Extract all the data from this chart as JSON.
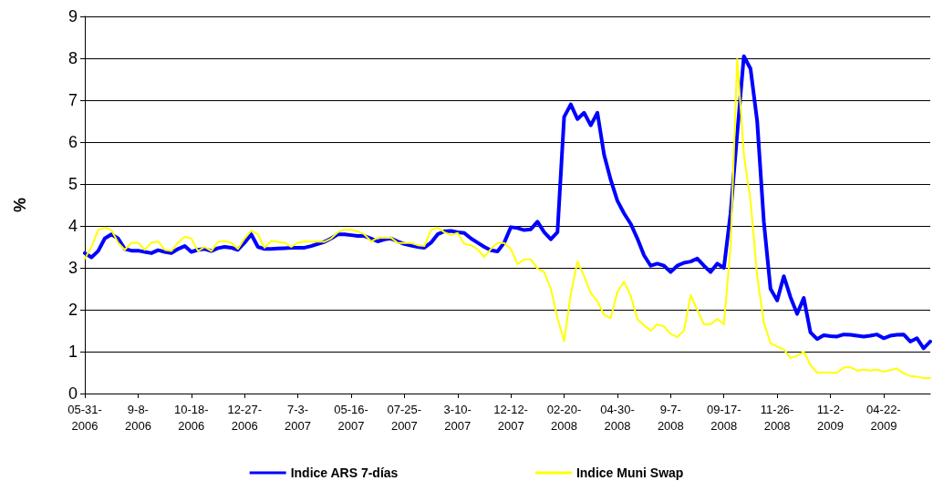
{
  "chart_data": {
    "type": "line",
    "ylabel": "%",
    "categories": [
      "05-31-2006",
      null,
      null,
      null,
      null,
      null,
      null,
      null,
      "9-8-2006",
      null,
      null,
      null,
      null,
      null,
      null,
      null,
      "10-18-2006",
      null,
      null,
      null,
      null,
      null,
      null,
      null,
      "12-27-2006",
      null,
      null,
      null,
      null,
      null,
      null,
      null,
      "7-3-2007",
      null,
      null,
      null,
      null,
      null,
      null,
      null,
      "05-16-2007",
      null,
      null,
      null,
      null,
      null,
      null,
      null,
      "07-25-2007",
      null,
      null,
      null,
      null,
      null,
      null,
      null,
      "3-10-2007",
      null,
      null,
      null,
      null,
      null,
      null,
      null,
      "12-12-2007",
      null,
      null,
      null,
      null,
      null,
      null,
      null,
      "02-20-2008",
      null,
      null,
      null,
      null,
      null,
      null,
      null,
      "04-30-2008",
      null,
      null,
      null,
      null,
      null,
      null,
      null,
      "9-7-2008",
      null,
      null,
      null,
      null,
      null,
      null,
      null,
      "09-17-2008",
      null,
      null,
      null,
      null,
      null,
      null,
      null,
      "11-26-2008",
      null,
      null,
      null,
      null,
      null,
      null,
      null,
      "11-2-2009",
      null,
      null,
      null,
      null,
      null,
      null,
      null,
      "04-22-2009",
      null,
      null,
      null,
      null,
      null,
      null,
      null
    ],
    "series": [
      {
        "name": "Indice ARS 7-días",
        "color": "#0000ff",
        "values": [
          3.35,
          3.25,
          3.4,
          3.7,
          3.8,
          3.7,
          3.45,
          3.41,
          3.41,
          3.38,
          3.35,
          3.42,
          3.38,
          3.35,
          3.45,
          3.52,
          3.38,
          3.43,
          3.45,
          3.4,
          3.47,
          3.5,
          3.48,
          3.43,
          3.6,
          3.8,
          3.5,
          3.45,
          3.45,
          3.46,
          3.47,
          3.48,
          3.48,
          3.48,
          3.52,
          3.57,
          3.62,
          3.7,
          3.8,
          3.8,
          3.78,
          3.76,
          3.76,
          3.7,
          3.63,
          3.68,
          3.7,
          3.63,
          3.57,
          3.53,
          3.5,
          3.48,
          3.6,
          3.8,
          3.87,
          3.88,
          3.85,
          3.83,
          3.7,
          3.6,
          3.5,
          3.42,
          3.39,
          3.6,
          3.97,
          3.95,
          3.9,
          3.92,
          4.1,
          3.85,
          3.68,
          3.85,
          6.6,
          6.9,
          6.55,
          6.7,
          6.4,
          6.7,
          5.7,
          5.1,
          4.6,
          4.3,
          4.05,
          3.7,
          3.3,
          3.05,
          3.1,
          3.05,
          2.9,
          3.05,
          3.12,
          3.15,
          3.22,
          3.05,
          2.9,
          3.1,
          3.0,
          4.3,
          6.2,
          8.05,
          7.75,
          6.5,
          4.1,
          2.5,
          2.22,
          2.8,
          2.3,
          1.9,
          2.28,
          1.46,
          1.3,
          1.39,
          1.37,
          1.36,
          1.41,
          1.4,
          1.38,
          1.36,
          1.38,
          1.41,
          1.32,
          1.38,
          1.4,
          1.41,
          1.24,
          1.32,
          1.08,
          1.24
        ]
      },
      {
        "name": "Indice Muni Swap",
        "color": "#ffff00",
        "values": [
          3.22,
          3.5,
          3.9,
          3.96,
          3.9,
          3.6,
          3.43,
          3.6,
          3.6,
          3.43,
          3.6,
          3.63,
          3.43,
          3.4,
          3.6,
          3.74,
          3.7,
          3.4,
          3.5,
          3.4,
          3.62,
          3.64,
          3.6,
          3.45,
          3.7,
          3.89,
          3.8,
          3.48,
          3.64,
          3.62,
          3.6,
          3.5,
          3.6,
          3.63,
          3.62,
          3.63,
          3.62,
          3.7,
          3.85,
          3.91,
          3.91,
          3.87,
          3.8,
          3.63,
          3.72,
          3.72,
          3.72,
          3.59,
          3.59,
          3.59,
          3.54,
          3.52,
          3.9,
          3.96,
          3.85,
          3.78,
          3.83,
          3.57,
          3.54,
          3.44,
          3.26,
          3.45,
          3.59,
          3.59,
          3.45,
          3.09,
          3.2,
          3.2,
          2.98,
          2.9,
          2.5,
          1.8,
          1.25,
          2.37,
          3.15,
          2.8,
          2.4,
          2.2,
          1.88,
          1.8,
          2.43,
          2.67,
          2.33,
          1.78,
          1.63,
          1.5,
          1.65,
          1.6,
          1.42,
          1.35,
          1.5,
          2.35,
          2.0,
          1.65,
          1.65,
          1.78,
          1.65,
          3.5,
          7.98,
          5.7,
          4.6,
          2.8,
          1.7,
          1.2,
          1.12,
          1.05,
          0.85,
          0.9,
          1.0,
          0.68,
          0.5,
          0.5,
          0.5,
          0.5,
          0.62,
          0.63,
          0.55,
          0.57,
          0.55,
          0.57,
          0.52,
          0.56,
          0.6,
          0.48,
          0.42,
          0.4,
          0.37,
          0.37
        ]
      }
    ],
    "ylim": [
      0,
      9
    ],
    "yticks": [
      0,
      1,
      2,
      3,
      4,
      5,
      6,
      7,
      8,
      9
    ],
    "grid": "y",
    "legend": "bottom",
    "marker": "none",
    "line_style": "solid"
  }
}
